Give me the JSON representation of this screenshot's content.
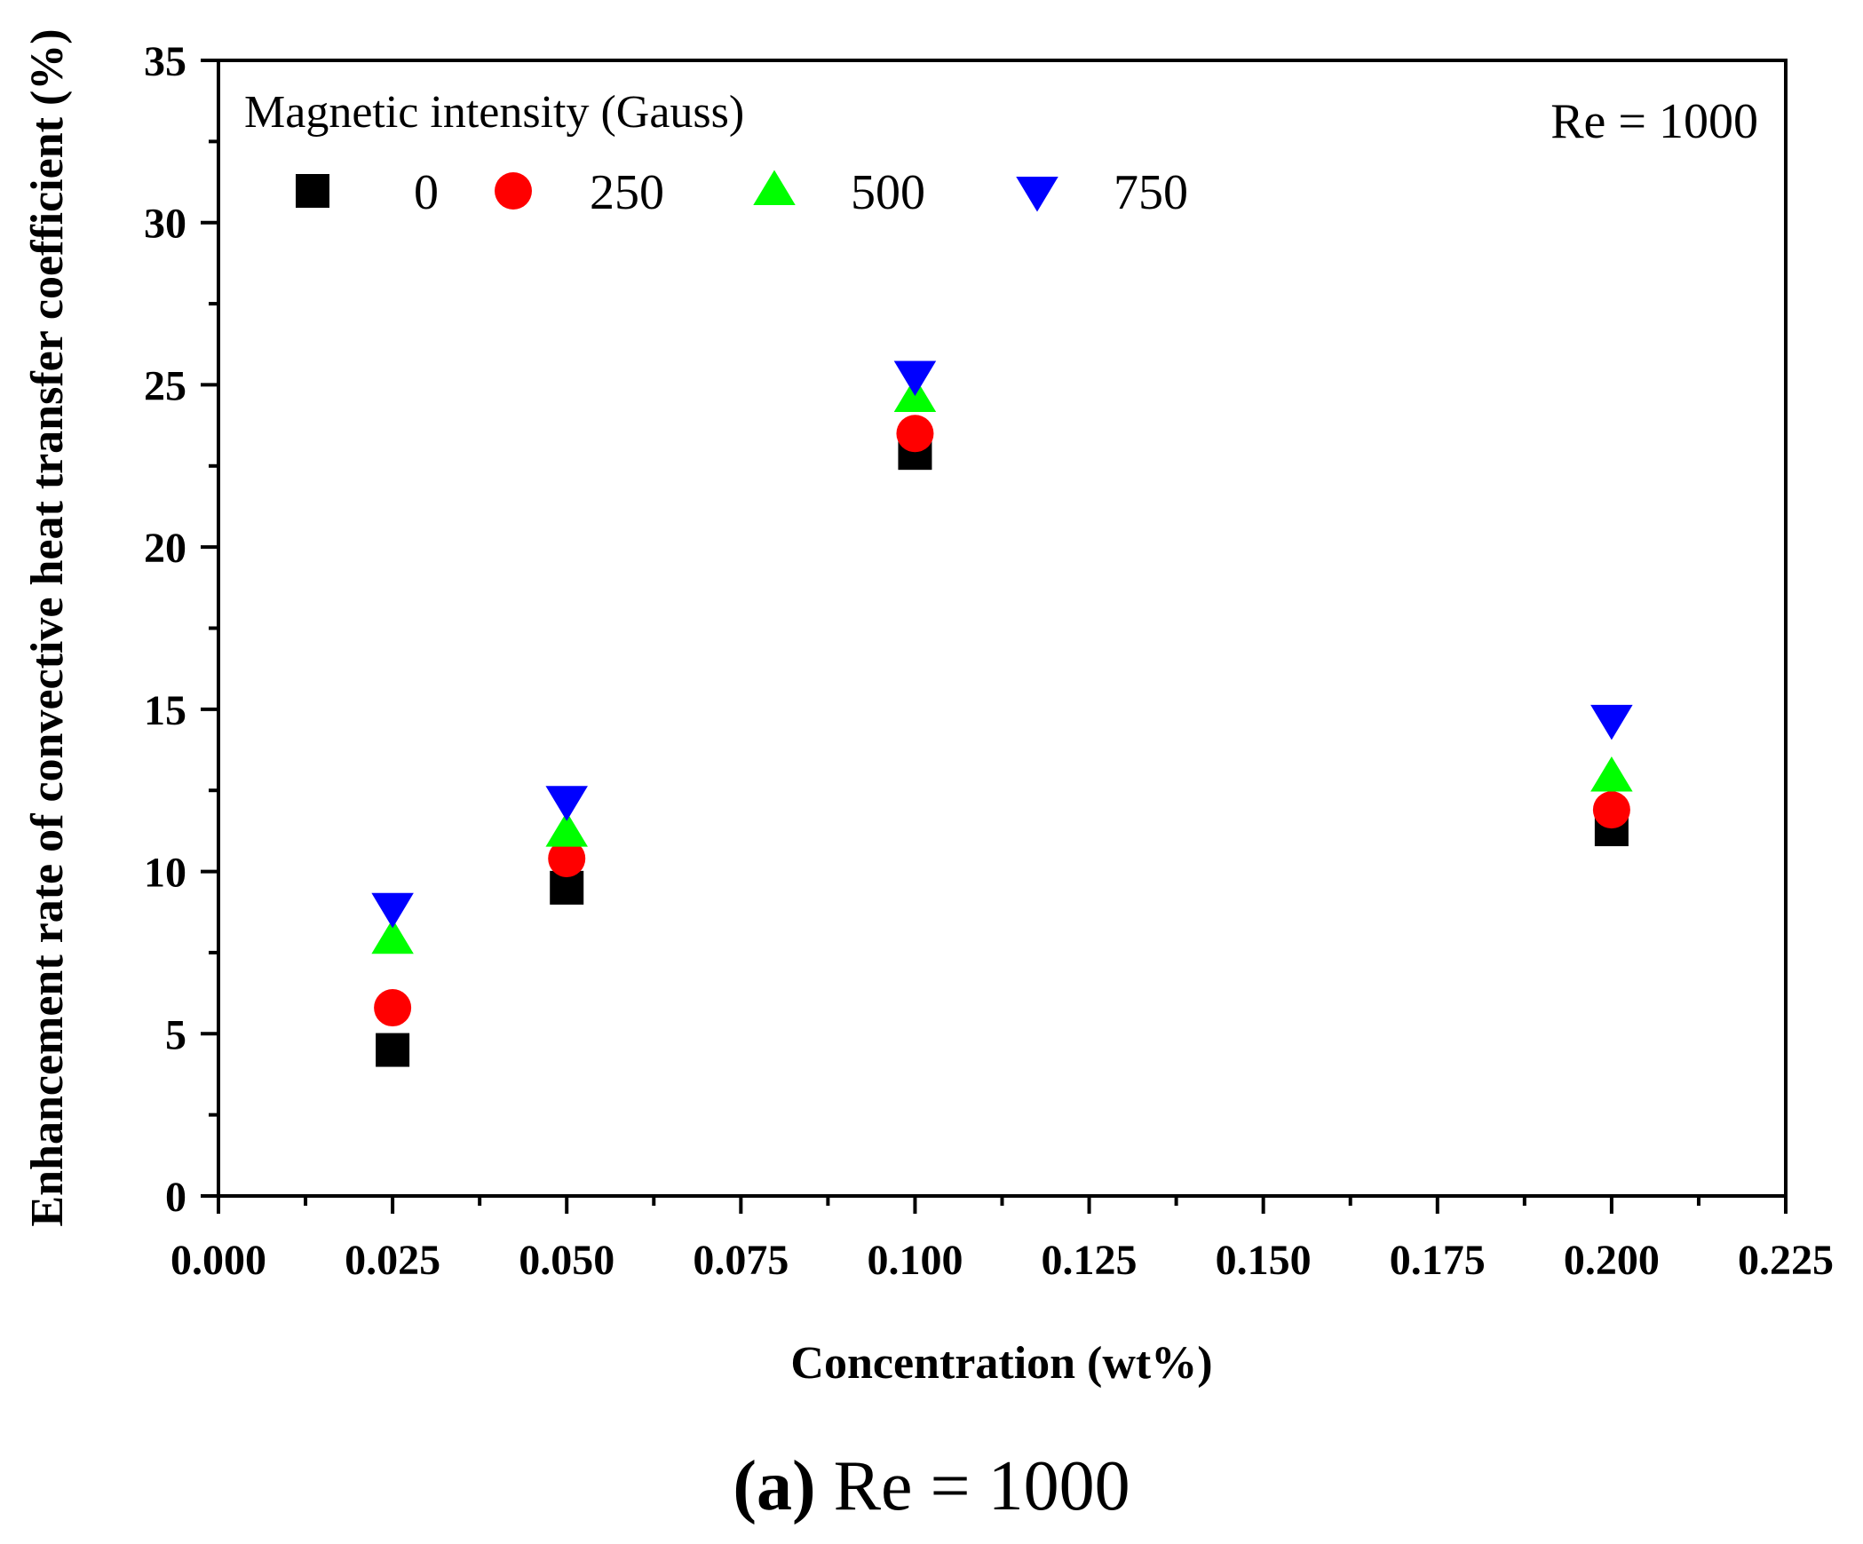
{
  "chart_data": {
    "type": "scatter",
    "xlabel": "Concentration (wt%)",
    "ylabel": "Enhancement rate of convective heat transfer coefficient (%)",
    "xlim": [
      0,
      0.225
    ],
    "ylim": [
      0,
      35
    ],
    "x_ticks": [
      0.0,
      0.025,
      0.05,
      0.075,
      0.1,
      0.125,
      0.15,
      0.175,
      0.2,
      0.225
    ],
    "x_tick_labels": [
      "0.000",
      "0.025",
      "0.050",
      "0.075",
      "0.100",
      "0.125",
      "0.150",
      "0.175",
      "0.200",
      "0.225"
    ],
    "y_ticks": [
      0,
      5,
      10,
      15,
      20,
      25,
      30,
      35
    ],
    "y_tick_labels": [
      "0",
      "5",
      "10",
      "15",
      "20",
      "25",
      "30",
      "35"
    ],
    "legend_title": "Magnetic intensity (Gauss)",
    "legend_position": "top-left",
    "annotation": "Re = 1000",
    "series": [
      {
        "name": "0",
        "marker": "square",
        "color": "#000000",
        "x": [
          0.025,
          0.05,
          0.1,
          0.2
        ],
        "y": [
          4.5,
          9.5,
          22.9,
          11.3
        ]
      },
      {
        "name": "250",
        "marker": "circle",
        "color": "#ff0000",
        "x": [
          0.025,
          0.05,
          0.1,
          0.2
        ],
        "y": [
          5.8,
          10.4,
          23.5,
          11.9
        ]
      },
      {
        "name": "500",
        "marker": "triangle-up",
        "color": "#00ff00",
        "x": [
          0.025,
          0.05,
          0.1,
          0.2
        ],
        "y": [
          7.9,
          11.2,
          24.6,
          12.9
        ]
      },
      {
        "name": "750",
        "marker": "triangle-down",
        "color": "#0000ff",
        "x": [
          0.025,
          0.05,
          0.1,
          0.2
        ],
        "y": [
          8.9,
          12.2,
          25.3,
          14.7
        ]
      }
    ]
  },
  "caption": {
    "letter": "(a)",
    "text": "Re = 1000"
  }
}
